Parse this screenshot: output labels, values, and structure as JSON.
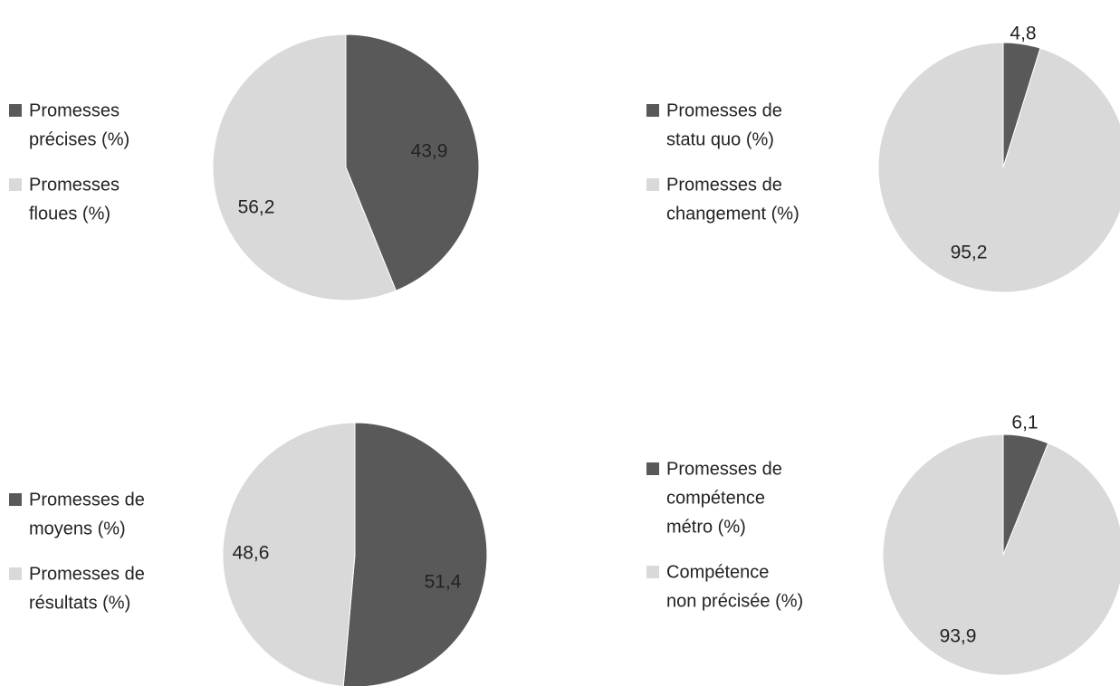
{
  "chart_data": [
    {
      "type": "pie",
      "categories": [
        "Promesses précises (%)",
        "Promesses floues (%)"
      ],
      "legend_lines": [
        [
          "Promesses",
          "précises (%)"
        ],
        [
          "Promesses",
          "floues (%)"
        ]
      ],
      "values": [
        43.9,
        56.2
      ],
      "value_labels": [
        "43,9",
        "56,2"
      ],
      "colors": [
        "#595959",
        "#d9d9d9"
      ],
      "legend": "left"
    },
    {
      "type": "pie",
      "categories": [
        "Promesses de statu quo (%)",
        "Promesses de changement (%)"
      ],
      "legend_lines": [
        [
          "Promesses de",
          "statu quo (%)"
        ],
        [
          "Promesses de",
          "changement (%)"
        ]
      ],
      "values": [
        4.8,
        95.2
      ],
      "value_labels": [
        "4,8",
        "95,2"
      ],
      "colors": [
        "#595959",
        "#d9d9d9"
      ],
      "legend": "left"
    },
    {
      "type": "pie",
      "categories": [
        "Promesses de moyens (%)",
        "Promesses de résultats (%)"
      ],
      "legend_lines": [
        [
          "Promesses de",
          "moyens (%)"
        ],
        [
          "Promesses de",
          "résultats (%)"
        ]
      ],
      "values": [
        51.4,
        48.6
      ],
      "value_labels": [
        "51,4",
        "48,6"
      ],
      "colors": [
        "#595959",
        "#d9d9d9"
      ],
      "legend": "left"
    },
    {
      "type": "pie",
      "categories": [
        "Promesses de compétence métro (%)",
        "Compétence non précisée (%)"
      ],
      "legend_lines": [
        [
          "Promesses de",
          "compétence",
          "métro (%)"
        ],
        [
          "Compétence",
          "non précisée (%)"
        ]
      ],
      "values": [
        6.1,
        93.9
      ],
      "value_labels": [
        "6,1",
        "93,9"
      ],
      "colors": [
        "#595959",
        "#d9d9d9"
      ],
      "legend": "left"
    }
  ]
}
